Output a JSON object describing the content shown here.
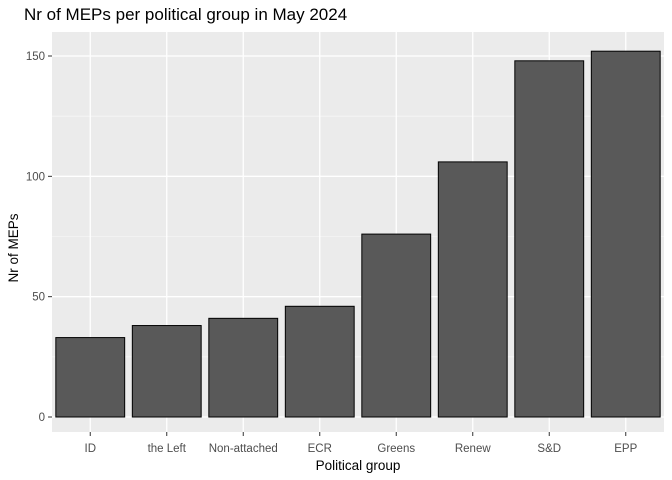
{
  "chart_data": {
    "type": "bar",
    "title": "Nr of MEPs per political group in May 2024",
    "xlabel": "Political group",
    "ylabel": "Nr of MEPs",
    "categories": [
      "ID",
      "the Left",
      "Non-attached",
      "ECR",
      "Greens",
      "Renew",
      "S&D",
      "EPP"
    ],
    "values": [
      33,
      38,
      41,
      46,
      76,
      106,
      148,
      152
    ],
    "ylim": [
      0,
      160
    ],
    "yticks": [
      0,
      50,
      100,
      150
    ],
    "grid": true,
    "legend": "none",
    "colors": {
      "bar_fill": "#595959",
      "bar_stroke": "#000000",
      "panel_background": "#ebebeb",
      "grid_major": "#ffffff",
      "grid_minor": "#f5f5f5"
    }
  }
}
